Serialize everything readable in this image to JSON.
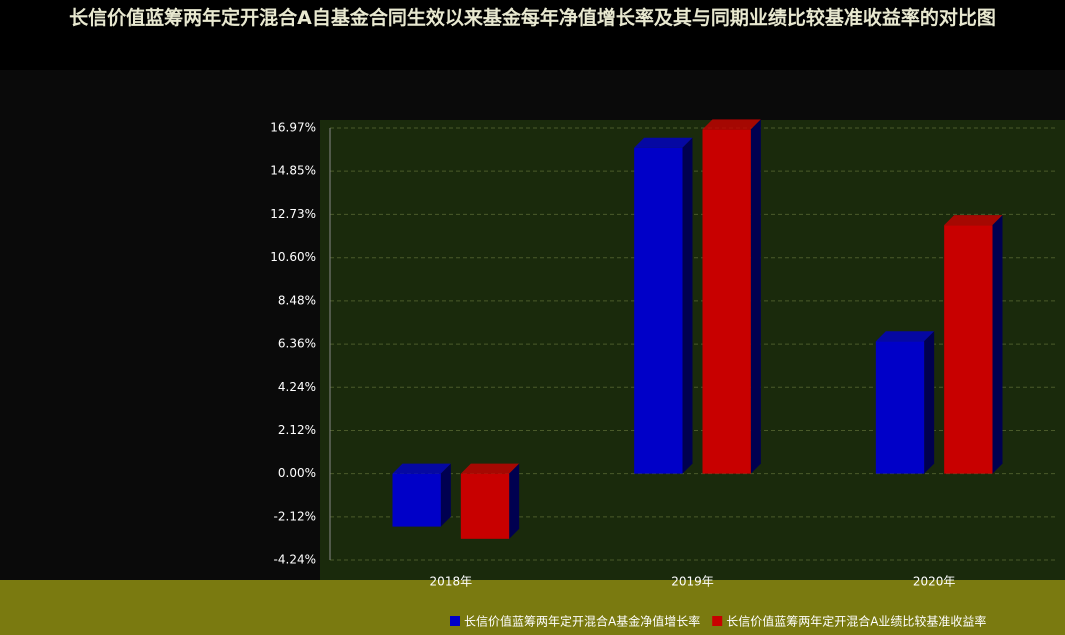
{
  "chart_data": {
    "type": "bar",
    "title": "长信价值蓝筹两年定开混合A自基金合同生效以来基金每年净值增长率及其与同期业绩比较基准收益率的对比图",
    "categories": [
      "2018年",
      "2019年",
      "2020年"
    ],
    "series": [
      {
        "name": "长信价值蓝筹两年定开混合A基金净值增长率",
        "color": "#0000c8",
        "values": [
          -2.6,
          16.0,
          6.5
        ]
      },
      {
        "name": "长信价值蓝筹两年定开混合A业绩比较基准收益率",
        "color": "#c80000",
        "values": [
          -3.2,
          16.9,
          12.2
        ]
      }
    ],
    "ylim": [
      -4.24,
      16.97
    ],
    "yticks": [
      {
        "value": -4.24,
        "label": "-4.24%"
      },
      {
        "value": -2.12,
        "label": "-2.12%"
      },
      {
        "value": 0,
        "label": "0.00%"
      },
      {
        "value": 2.12,
        "label": "2.12%"
      },
      {
        "value": 4.24,
        "label": "4.24%"
      },
      {
        "value": 6.36,
        "label": "6.36%"
      },
      {
        "value": 8.48,
        "label": "8.48%"
      },
      {
        "value": 10.6,
        "label": "10.60%"
      },
      {
        "value": 12.73,
        "label": "12.73%"
      },
      {
        "value": 14.85,
        "label": "14.85%"
      },
      {
        "value": 16.97,
        "label": "16.97%"
      }
    ],
    "grid": true,
    "legend": "bottom"
  }
}
